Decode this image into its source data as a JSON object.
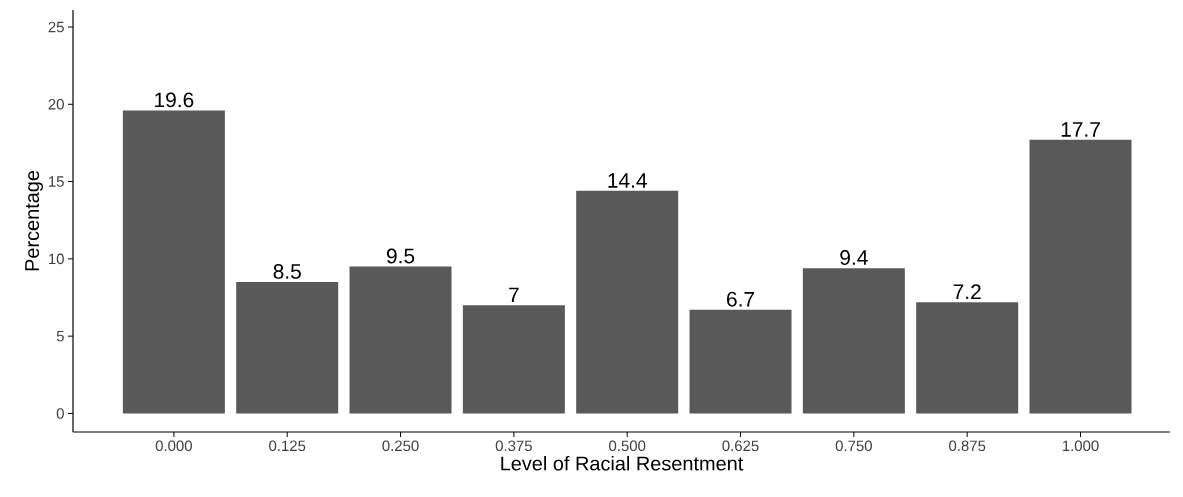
{
  "chart_data": {
    "type": "bar",
    "xlabel": "Level of Racial Resentment",
    "ylabel": "Percentage",
    "categories": [
      "0.000",
      "0.125",
      "0.250",
      "0.375",
      "0.500",
      "0.625",
      "0.750",
      "0.875",
      "1.000"
    ],
    "values": [
      19.6,
      8.5,
      9.5,
      7,
      14.4,
      6.7,
      9.4,
      7.2,
      17.7
    ],
    "color": "#595959",
    "ylim": [
      -1.2,
      26.1
    ],
    "yticks": [
      0,
      5,
      10,
      15,
      20,
      25
    ],
    "data_labels": true
  }
}
